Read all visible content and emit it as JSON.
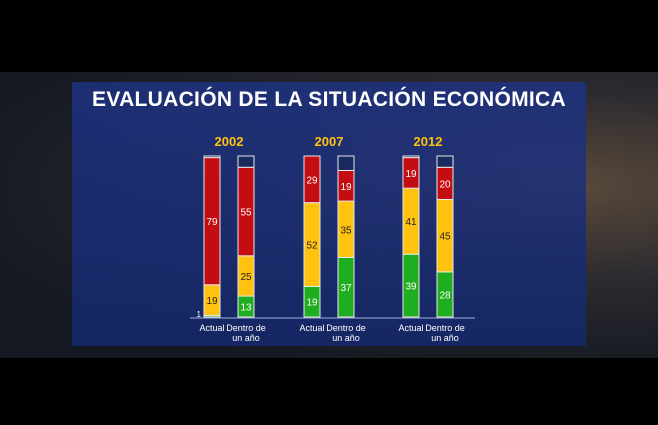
{
  "chart_data": {
    "type": "bar",
    "stacked": true,
    "title": "EVALUACIÓN DE LA SITUACIÓN ECONÓMICA",
    "groups": [
      "2002",
      "2007",
      "2012"
    ],
    "categories": [
      "Actual",
      "Dentro de un año"
    ],
    "category_lines": [
      [
        "Actual"
      ],
      [
        "Dentro de",
        "un año"
      ]
    ],
    "colors": {
      "green": "#1fae1f",
      "yellow": "#ffc20e",
      "red": "#c40d12",
      "remainder": "#1b2a5e"
    },
    "values": [
      [
        {
          "green": 1,
          "yellow": 19,
          "red": 79
        },
        {
          "green": 13,
          "yellow": 25,
          "red": 55
        }
      ],
      [
        {
          "green": 19,
          "yellow": 52,
          "red": 29
        },
        {
          "green": 37,
          "yellow": 35,
          "red": 19
        }
      ],
      [
        {
          "green": 39,
          "yellow": 41,
          "red": 19
        },
        {
          "green": 28,
          "yellow": 45,
          "red": 20
        }
      ]
    ],
    "ylim": [
      0,
      100
    ],
    "grid": false,
    "legend": "none"
  }
}
